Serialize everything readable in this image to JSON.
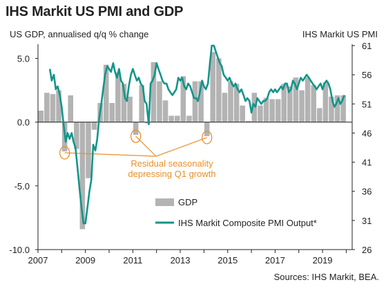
{
  "chart_data": {
    "type": "bar+line",
    "title": "IHS Markit US PMI and GDP",
    "ylabel_left": "US GDP, annualised q/q % change",
    "ylabel_right": "IHS Markit  US PMI",
    "ylim_left": [
      -10,
      6
    ],
    "ylim_right": [
      26,
      61
    ],
    "xlim": [
      2007,
      2020.25
    ],
    "x_ticks": [
      "2007",
      "2009",
      "2011",
      "2013",
      "2015",
      "2017",
      "2019"
    ],
    "y_ticks_left": [
      "5.0",
      "0.0",
      "-5.0",
      "-10.0"
    ],
    "y_ticks_right": [
      "61",
      "56",
      "51",
      "46",
      "41",
      "36",
      "31",
      "26"
    ],
    "colors": {
      "gdp_bars": "#b3b3b3",
      "pmi_line": "#12958a",
      "annotation": "#e8902b",
      "axis": "#222222"
    },
    "series": [
      {
        "name": "GDP",
        "kind": "bar",
        "x": [
          "2007Q1",
          "2007Q2",
          "2007Q3",
          "2007Q4",
          "2008Q1",
          "2008Q2",
          "2008Q3",
          "2008Q4",
          "2009Q1",
          "2009Q2",
          "2009Q3",
          "2009Q4",
          "2010Q1",
          "2010Q2",
          "2010Q3",
          "2010Q4",
          "2011Q1",
          "2011Q2",
          "2011Q3",
          "2011Q4",
          "2012Q1",
          "2012Q2",
          "2012Q3",
          "2012Q4",
          "2013Q1",
          "2013Q2",
          "2013Q3",
          "2013Q4",
          "2014Q1",
          "2014Q2",
          "2014Q3",
          "2014Q4",
          "2015Q1",
          "2015Q2",
          "2015Q3",
          "2015Q4",
          "2016Q1",
          "2016Q2",
          "2016Q3",
          "2016Q4",
          "2017Q1",
          "2017Q2",
          "2017Q3",
          "2017Q4",
          "2018Q1",
          "2018Q2",
          "2018Q3",
          "2018Q4",
          "2019Q1",
          "2019Q2",
          "2019Q3",
          "2019Q4"
        ],
        "values": [
          0.9,
          2.3,
          2.2,
          2.5,
          -2.3,
          2.1,
          -2.1,
          -8.4,
          -4.4,
          -0.6,
          1.5,
          4.5,
          1.5,
          3.9,
          3.0,
          2.0,
          -1.0,
          2.9,
          -0.1,
          4.7,
          3.2,
          1.7,
          0.5,
          0.5,
          3.6,
          0.5,
          3.2,
          3.2,
          -1.1,
          5.5,
          5.0,
          2.3,
          3.2,
          3.0,
          1.3,
          0.1,
          2.3,
          1.3,
          1.9,
          1.8,
          1.8,
          3.0,
          2.8,
          3.5,
          2.5,
          3.5,
          2.9,
          1.1,
          3.1,
          2.0,
          2.1,
          2.1
        ]
      },
      {
        "name": "IHS Markit Composite PMI Output*",
        "kind": "line",
        "x": [
          2007.5,
          2007.58,
          2007.67,
          2007.75,
          2007.83,
          2007.92,
          2008.0,
          2008.08,
          2008.17,
          2008.25,
          2008.33,
          2008.42,
          2008.5,
          2008.58,
          2008.67,
          2008.75,
          2008.83,
          2008.92,
          2009.0,
          2009.08,
          2009.17,
          2009.25,
          2009.33,
          2009.42,
          2009.5,
          2009.58,
          2009.67,
          2009.75,
          2009.83,
          2009.92,
          2010.0,
          2010.08,
          2010.17,
          2010.25,
          2010.33,
          2010.42,
          2010.5,
          2010.58,
          2010.67,
          2010.75,
          2010.83,
          2010.92,
          2011.0,
          2011.08,
          2011.17,
          2011.25,
          2011.33,
          2011.42,
          2011.5,
          2011.58,
          2011.67,
          2011.75,
          2011.83,
          2011.92,
          2012.0,
          2012.08,
          2012.17,
          2012.25,
          2012.33,
          2012.42,
          2012.5,
          2012.58,
          2012.67,
          2012.75,
          2012.83,
          2012.92,
          2013.0,
          2013.08,
          2013.17,
          2013.25,
          2013.33,
          2013.42,
          2013.5,
          2013.58,
          2013.67,
          2013.75,
          2013.83,
          2013.92,
          2014.0,
          2014.08,
          2014.17,
          2014.25,
          2014.33,
          2014.42,
          2014.5,
          2014.58,
          2014.67,
          2014.75,
          2014.83,
          2014.92,
          2015.0,
          2015.08,
          2015.17,
          2015.25,
          2015.33,
          2015.42,
          2015.5,
          2015.58,
          2015.67,
          2015.75,
          2015.83,
          2015.92,
          2016.0,
          2016.08,
          2016.17,
          2016.25,
          2016.33,
          2016.42,
          2016.5,
          2016.58,
          2016.67,
          2016.75,
          2016.83,
          2016.92,
          2017.0,
          2017.08,
          2017.17,
          2017.25,
          2017.33,
          2017.42,
          2017.5,
          2017.58,
          2017.67,
          2017.75,
          2017.83,
          2017.92,
          2018.0,
          2018.08,
          2018.17,
          2018.25,
          2018.33,
          2018.42,
          2018.5,
          2018.58,
          2018.67,
          2018.75,
          2018.83,
          2018.92,
          2019.0,
          2019.08,
          2019.17,
          2019.25,
          2019.33,
          2019.42,
          2019.5,
          2019.58,
          2019.67,
          2019.75,
          2019.83,
          2019.92
        ],
        "values": [
          57.0,
          55.0,
          56.0,
          53.5,
          54.0,
          52.5,
          50.5,
          47.5,
          44.5,
          46.0,
          45.0,
          46.0,
          44.5,
          43.5,
          40.0,
          36.5,
          33.5,
          30.5,
          30.5,
          33.0,
          36.0,
          38.0,
          44.0,
          43.0,
          45.0,
          48.5,
          51.0,
          53.5,
          56.0,
          57.5,
          57.0,
          56.5,
          58.0,
          56.5,
          55.5,
          57.0,
          55.0,
          54.5,
          52.0,
          51.5,
          54.0,
          56.0,
          57.0,
          56.0,
          55.0,
          55.5,
          54.5,
          54.0,
          51.5,
          51.0,
          47.5,
          54.5,
          55.0,
          56.0,
          58.0,
          57.0,
          56.0,
          55.0,
          54.5,
          54.5,
          53.5,
          53.0,
          52.5,
          53.0,
          53.5,
          55.5,
          55.0,
          55.5,
          54.0,
          53.5,
          54.5,
          54.0,
          53.0,
          52.0,
          52.0,
          51.5,
          53.0,
          55.0,
          54.0,
          53.5,
          54.5,
          58.0,
          61.0,
          61.0,
          60.0,
          59.0,
          58.0,
          57.5,
          56.0,
          55.5,
          55.0,
          55.5,
          54.5,
          54.0,
          54.5,
          53.5,
          53.0,
          53.5,
          52.5,
          51.5,
          52.0,
          51.5,
          49.5,
          51.0,
          50.5,
          52.0,
          51.5,
          51.0,
          51.5,
          51.5,
          52.0,
          53.0,
          53.5,
          53.0,
          53.5,
          53.0,
          53.5,
          54.0,
          53.5,
          54.5,
          54.5,
          53.0,
          53.5,
          55.0,
          54.5,
          53.5,
          54.5,
          55.5,
          55.0,
          55.5,
          56.0,
          55.5,
          55.0,
          54.5,
          54.0,
          53.5,
          54.0,
          54.5,
          53.5,
          54.5,
          55.0,
          54.5,
          53.5,
          51.5,
          50.5,
          51.0,
          52.0,
          51.0,
          51.5,
          52.5
        ]
      }
    ],
    "annotation": {
      "text_lines": [
        "Residual seasonality",
        "depressing Q1 growth"
      ],
      "circled_bars": [
        "2008Q1",
        "2011Q1",
        "2014Q1"
      ]
    },
    "legend": {
      "placement": "bottom-center"
    }
  },
  "source": "Sources: IHS Markit, BEA."
}
